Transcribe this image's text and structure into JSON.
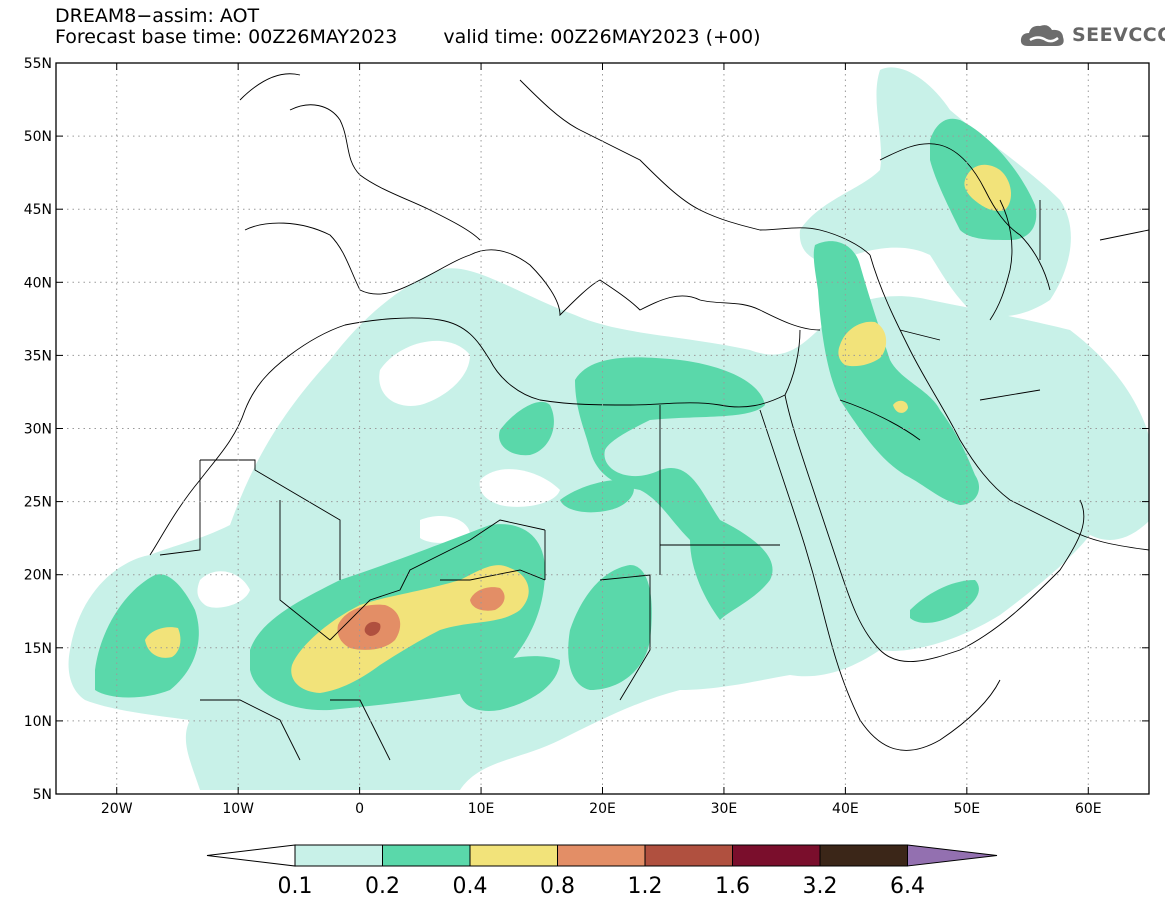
{
  "header": {
    "title_line1": "DREAM8−assim: AOT",
    "base_time": "Forecast base time: 00Z26MAY2023",
    "valid_time": "valid time: 00Z26MAY2023 (+00)"
  },
  "logo": {
    "text": "SEEVCCC",
    "icon": "cloud-icon"
  },
  "map": {
    "lon_range": [
      -25,
      65
    ],
    "lat_range": [
      5,
      55
    ],
    "lon_ticks": [
      {
        "value": -20,
        "label": "20W"
      },
      {
        "value": -10,
        "label": "10W"
      },
      {
        "value": 0,
        "label": "0"
      },
      {
        "value": 10,
        "label": "10E"
      },
      {
        "value": 20,
        "label": "20E"
      },
      {
        "value": 30,
        "label": "30E"
      },
      {
        "value": 40,
        "label": "40E"
      },
      {
        "value": 50,
        "label": "50E"
      },
      {
        "value": 60,
        "label": "60E"
      }
    ],
    "lat_ticks": [
      {
        "value": 55,
        "label": "55N"
      },
      {
        "value": 50,
        "label": "50N"
      },
      {
        "value": 45,
        "label": "45N"
      },
      {
        "value": 40,
        "label": "40N"
      },
      {
        "value": 35,
        "label": "35N"
      },
      {
        "value": 30,
        "label": "30N"
      },
      {
        "value": 25,
        "label": "25N"
      },
      {
        "value": 20,
        "label": "20N"
      },
      {
        "value": 15,
        "label": "15N"
      },
      {
        "value": 10,
        "label": "10N"
      },
      {
        "value": 5,
        "label": "5N"
      }
    ],
    "gridlines": "dotted"
  },
  "colorbar": {
    "colors": [
      "#ffffff",
      "#c8f1e8",
      "#5ad8aa",
      "#f2e37a",
      "#e38e66",
      "#b0503f",
      "#7a0e2c",
      "#3b2618",
      "#9370b0"
    ],
    "labels": [
      "0.1",
      "0.2",
      "0.4",
      "0.8",
      "1.2",
      "1.6",
      "3.2",
      "6.4"
    ]
  }
}
